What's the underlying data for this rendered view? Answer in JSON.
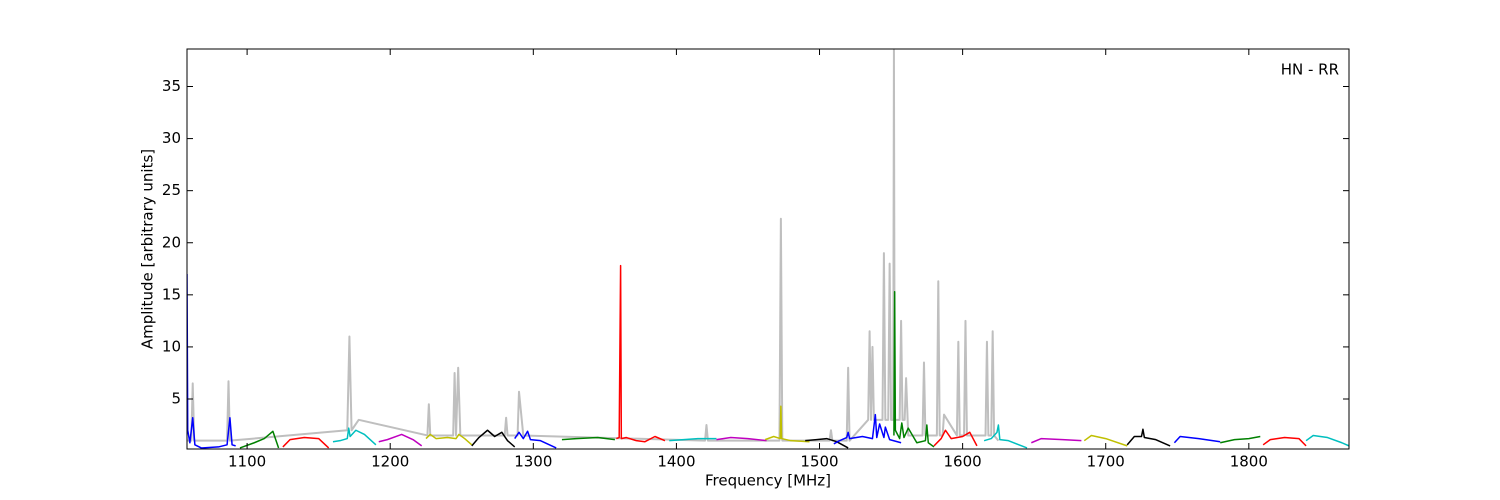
{
  "chart_data": {
    "type": "line",
    "annotation": "HN - RR",
    "xlabel": "Frequency [MHz]",
    "ylabel": "Amplitude [arbitrary units]",
    "xlim": [
      1058,
      1870
    ],
    "ylim": [
      0.2,
      38.6
    ],
    "xticks": [
      1100,
      1200,
      1300,
      1400,
      1500,
      1600,
      1700,
      1800
    ],
    "yticks": [
      5,
      10,
      15,
      20,
      25,
      30,
      35
    ],
    "grid": false,
    "series": [
      {
        "color": "#bfbfbf",
        "x": [
          1058,
          1061,
          1062,
          1063,
          1086,
          1087,
          1088,
          1170,
          1171.5,
          1173,
          1178,
          1226,
          1227,
          1228,
          1244,
          1245,
          1246,
          1247.5,
          1249,
          1280,
          1281,
          1282,
          1289,
          1290,
          1293,
          1420,
          1421,
          1422,
          1472,
          1473,
          1474,
          1507,
          1508,
          1509,
          1519,
          1520,
          1521,
          1534,
          1535,
          1536,
          1537,
          1538,
          1544,
          1545,
          1546,
          1548,
          1549,
          1550,
          1551.5,
          1552,
          1552.5,
          1556,
          1557,
          1558,
          1559.5,
          1560.5,
          1562,
          1572,
          1573,
          1574,
          1582,
          1583,
          1584,
          1586,
          1587,
          1596,
          1597,
          1598,
          1601,
          1602,
          1603,
          1616,
          1617,
          1618,
          1620,
          1621,
          1622,
          1625
        ],
        "values": [
          1,
          1,
          6.5,
          1,
          1,
          6.7,
          1,
          2,
          11,
          2,
          3,
          1.5,
          4.5,
          1.5,
          1.5,
          7.5,
          1.5,
          8,
          1.5,
          1.5,
          3.2,
          1.5,
          1.5,
          5.7,
          1.5,
          1,
          2.5,
          1,
          1,
          22.3,
          1,
          1,
          2,
          1,
          1,
          8,
          1,
          3,
          11.5,
          3,
          10,
          3,
          3,
          19,
          3,
          3,
          18,
          3,
          3,
          38.5,
          3,
          3,
          12.5,
          3,
          3,
          7,
          1.5,
          1.5,
          8.5,
          1.5,
          1.5,
          16.3,
          1.5,
          1.5,
          3.5,
          1.5,
          10.5,
          1.5,
          1.5,
          12.5,
          1.5,
          1.5,
          10.5,
          1.5,
          1.5,
          11.5,
          1.5,
          1
        ]
      },
      {
        "color": "#0000ff",
        "x": [
          1058,
          1058.5,
          1060,
          1062,
          1063.5,
          1068,
          1080,
          1086,
          1088,
          1089.5,
          1092
        ],
        "values": [
          17,
          2,
          0.8,
          3.2,
          0.6,
          0.3,
          0.4,
          0.6,
          3.2,
          0.6,
          0.5
        ]
      },
      {
        "color": "#008000",
        "x": [
          1095,
          1105,
          1112,
          1118,
          1122
        ],
        "values": [
          0.3,
          0.8,
          1.2,
          1.9,
          0.3
        ]
      },
      {
        "color": "#ff0000",
        "x": [
          1125,
          1130,
          1140,
          1150,
          1157
        ],
        "values": [
          0.4,
          1.1,
          1.3,
          1.2,
          0.3
        ]
      },
      {
        "color": "#00bfbf",
        "x": [
          1160,
          1165,
          1170,
          1171,
          1172,
          1176,
          1182,
          1190
        ],
        "values": [
          0.9,
          1,
          1.2,
          2.2,
          1.4,
          2,
          1.6,
          0.6
        ]
      },
      {
        "color": "#bf00bf",
        "x": [
          1192,
          1198,
          1208,
          1216,
          1222
        ],
        "values": [
          0.9,
          1.1,
          1.6,
          1.1,
          0.5
        ]
      },
      {
        "color": "#bfbf00",
        "x": [
          1225,
          1228,
          1232,
          1240,
          1246,
          1248,
          1252,
          1257
        ],
        "values": [
          1.2,
          1.6,
          1.2,
          1.3,
          1.2,
          1.6,
          1.2,
          0.6
        ]
      },
      {
        "color": "#000000",
        "x": [
          1257,
          1262,
          1268,
          1273,
          1278,
          1282,
          1287
        ],
        "values": [
          0.5,
          1.3,
          2,
          1.4,
          1.8,
          1,
          0.4
        ]
      },
      {
        "color": "#0000ff",
        "x": [
          1287,
          1290,
          1293,
          1296,
          1298,
          1305,
          1316
        ],
        "values": [
          1.2,
          1.8,
          1.2,
          1.9,
          1.1,
          1,
          0.3
        ]
      },
      {
        "color": "#008000",
        "x": [
          1320,
          1330,
          1345,
          1357
        ],
        "values": [
          1.1,
          1.2,
          1.3,
          1.1
        ]
      },
      {
        "color": "#ff0000",
        "x": [
          1358,
          1360,
          1361,
          1361.5,
          1365,
          1372,
          1378,
          1385,
          1392
        ],
        "values": [
          1.2,
          1.3,
          17.8,
          1.2,
          1.3,
          1,
          0.9,
          1.4,
          1
        ]
      },
      {
        "color": "#00bfbf",
        "x": [
          1395,
          1405,
          1415,
          1428
        ],
        "values": [
          1,
          1.1,
          1.2,
          1.2
        ]
      },
      {
        "color": "#bf00bf",
        "x": [
          1428,
          1438,
          1450,
          1463
        ],
        "values": [
          1.1,
          1.3,
          1.2,
          1
        ]
      },
      {
        "color": "#bfbf00",
        "x": [
          1462,
          1468,
          1472.5,
          1473,
          1473.5,
          1480,
          1493
        ],
        "values": [
          1.1,
          1.4,
          1.2,
          4.3,
          1.2,
          1,
          0.9
        ]
      },
      {
        "color": "#000000",
        "x": [
          1490,
          1498,
          1505,
          1512,
          1520
        ],
        "values": [
          1,
          1.1,
          1.2,
          0.9,
          0.3
        ]
      },
      {
        "color": "#0000ff",
        "x": [
          1510,
          1514,
          1519,
          1520,
          1521,
          1530,
          1537,
          1539,
          1540,
          1542,
          1545,
          1546,
          1549,
          1557
        ],
        "values": [
          0.7,
          1,
          1.3,
          1.8,
          1.2,
          1.4,
          1.2,
          3.5,
          1.3,
          2.6,
          1.3,
          2.3,
          1.1,
          0.8
        ]
      },
      {
        "color": "#008000",
        "x": [
          1552,
          1552.5,
          1553,
          1556,
          1557.5,
          1559,
          1562,
          1568,
          1574,
          1575,
          1576,
          1580
        ],
        "values": [
          1.5,
          15.3,
          2,
          1.2,
          2.7,
          1.3,
          2.2,
          0.8,
          1,
          2.5,
          0.8,
          0.4
        ]
      },
      {
        "color": "#ff0000",
        "x": [
          1580,
          1585,
          1588,
          1592,
          1600,
          1605,
          1610
        ],
        "values": [
          0.5,
          1.2,
          2,
          1.2,
          1.4,
          1.8,
          0.5
        ]
      },
      {
        "color": "#00bfbf",
        "x": [
          1615,
          1620,
          1624,
          1625,
          1626,
          1632,
          1645
        ],
        "values": [
          1,
          1.2,
          1.8,
          2.5,
          1.1,
          1,
          0.3
        ]
      },
      {
        "color": "#bf00bf",
        "x": [
          1648,
          1655,
          1670,
          1683
        ],
        "values": [
          0.8,
          1.2,
          1.1,
          1
        ]
      },
      {
        "color": "#bfbf00",
        "x": [
          1685,
          1690,
          1700,
          1715
        ],
        "values": [
          1,
          1.5,
          1.2,
          0.5
        ]
      },
      {
        "color": "#000000",
        "x": [
          1715,
          1720,
          1725,
          1726,
          1727,
          1735,
          1745
        ],
        "values": [
          0.6,
          1.4,
          1.4,
          2.1,
          1.3,
          1.1,
          0.5
        ]
      },
      {
        "color": "#0000ff",
        "x": [
          1748,
          1752,
          1765,
          1780
        ],
        "values": [
          0.8,
          1.4,
          1.2,
          0.9
        ]
      },
      {
        "color": "#008000",
        "x": [
          1780,
          1790,
          1800,
          1808
        ],
        "values": [
          0.8,
          1.1,
          1.2,
          1.4
        ]
      },
      {
        "color": "#ff0000",
        "x": [
          1810,
          1815,
          1825,
          1835,
          1840
        ],
        "values": [
          0.6,
          1.1,
          1.3,
          1.2,
          0.5
        ]
      },
      {
        "color": "#00bfbf",
        "x": [
          1840,
          1845,
          1855,
          1865,
          1870
        ],
        "values": [
          1,
          1.5,
          1.3,
          0.8,
          0.5
        ]
      }
    ]
  }
}
